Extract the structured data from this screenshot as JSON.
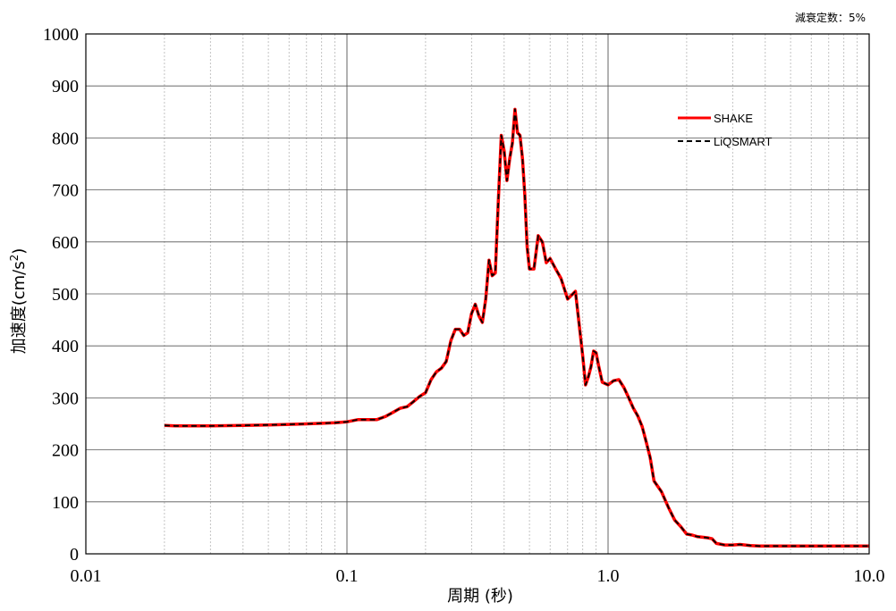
{
  "chart_data": {
    "type": "line",
    "annotation": "減衰定数：5%",
    "xlabel": "周期 (秒)",
    "ylabel": "加速度(cm/s2)",
    "xscale": "log",
    "xlim": [
      0.01,
      10.0
    ],
    "ylim": [
      0,
      1000
    ],
    "x_ticks": [
      "0.01",
      "0.1",
      "1.0",
      "10.0"
    ],
    "y_ticks": [
      "0",
      "100",
      "200",
      "300",
      "400",
      "500",
      "600",
      "700",
      "800",
      "900",
      "1000"
    ],
    "grid": "on",
    "legend_position": "top-right",
    "x": [
      0.02,
      0.022,
      0.025,
      0.03,
      0.04,
      0.05,
      0.06,
      0.07,
      0.08,
      0.09,
      0.1,
      0.11,
      0.12,
      0.13,
      0.14,
      0.15,
      0.16,
      0.17,
      0.18,
      0.19,
      0.2,
      0.21,
      0.22,
      0.23,
      0.24,
      0.25,
      0.26,
      0.27,
      0.28,
      0.29,
      0.3,
      0.31,
      0.32,
      0.33,
      0.34,
      0.35,
      0.36,
      0.37,
      0.38,
      0.39,
      0.4,
      0.41,
      0.42,
      0.43,
      0.44,
      0.45,
      0.46,
      0.47,
      0.48,
      0.49,
      0.5,
      0.52,
      0.54,
      0.56,
      0.58,
      0.6,
      0.63,
      0.66,
      0.7,
      0.75,
      0.8,
      0.82,
      0.84,
      0.86,
      0.88,
      0.9,
      0.92,
      0.95,
      1.0,
      1.05,
      1.1,
      1.15,
      1.2,
      1.25,
      1.3,
      1.35,
      1.4,
      1.45,
      1.5,
      1.6,
      1.7,
      1.8,
      1.9,
      2.0,
      2.1,
      2.2,
      2.3,
      2.4,
      2.5,
      2.6,
      2.8,
      3.0,
      3.2,
      3.5,
      3.8,
      4.0,
      4.3,
      4.6,
      5.0,
      5.5,
      6.0,
      6.5,
      7.0,
      7.5,
      8.0,
      8.5,
      9.0,
      9.5,
      10.0
    ],
    "series": [
      {
        "name": "SHAKE",
        "color": "#ff0000",
        "style": "solid",
        "values": [
          247,
          246,
          246,
          246,
          247,
          248,
          249,
          250,
          251,
          252,
          254,
          258,
          258,
          258,
          264,
          272,
          280,
          283,
          293,
          303,
          310,
          335,
          350,
          357,
          370,
          410,
          432,
          432,
          420,
          425,
          462,
          480,
          458,
          445,
          490,
          565,
          535,
          540,
          680,
          805,
          775,
          718,
          760,
          790,
          855,
          810,
          805,
          760,
          690,
          590,
          548,
          548,
          612,
          600,
          560,
          568,
          548,
          530,
          490,
          505,
          380,
          325,
          340,
          360,
          390,
          387,
          362,
          330,
          325,
          333,
          335,
          320,
          300,
          280,
          265,
          245,
          215,
          185,
          140,
          120,
          90,
          65,
          52,
          38,
          36,
          33,
          32,
          31,
          29,
          20,
          17,
          17,
          18,
          16,
          15,
          15,
          15,
          15,
          15,
          15,
          15,
          15,
          15,
          15,
          15,
          15,
          15,
          15,
          15
        ]
      },
      {
        "name": "LiQSMART",
        "color": "#000000",
        "style": "dashed",
        "values": [
          247,
          246,
          246,
          246,
          247,
          248,
          249,
          250,
          251,
          252,
          254,
          258,
          258,
          258,
          264,
          272,
          280,
          283,
          293,
          303,
          310,
          335,
          350,
          357,
          370,
          410,
          432,
          432,
          420,
          425,
          462,
          480,
          458,
          445,
          490,
          565,
          535,
          540,
          680,
          805,
          775,
          718,
          760,
          790,
          855,
          810,
          805,
          760,
          690,
          590,
          548,
          548,
          612,
          600,
          560,
          568,
          548,
          530,
          490,
          505,
          380,
          325,
          340,
          360,
          390,
          387,
          362,
          330,
          325,
          333,
          335,
          320,
          300,
          280,
          265,
          245,
          215,
          185,
          140,
          120,
          90,
          65,
          52,
          38,
          36,
          33,
          32,
          31,
          29,
          20,
          17,
          17,
          18,
          16,
          15,
          15,
          15,
          15,
          15,
          15,
          15,
          15,
          15,
          15,
          15,
          15,
          15,
          15,
          15
        ]
      }
    ]
  }
}
